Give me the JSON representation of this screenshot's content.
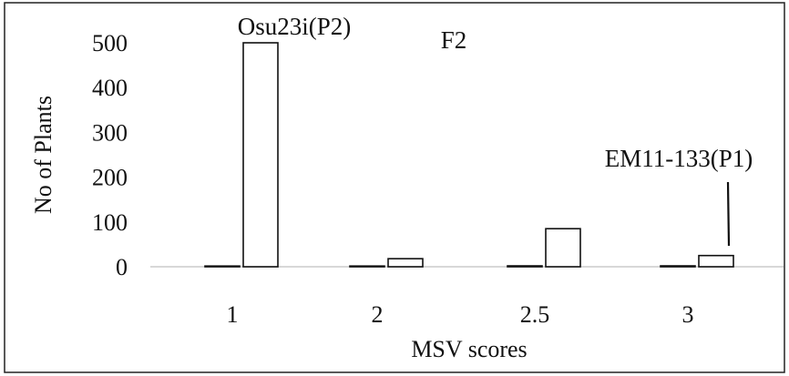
{
  "chart_data": {
    "type": "bar",
    "categories": [
      "1",
      "2",
      "2.5",
      "3"
    ],
    "series": [
      {
        "values": [
          0,
          0,
          2,
          2
        ]
      },
      {
        "values": [
          500,
          18,
          85,
          25
        ]
      }
    ],
    "xlabel": "MSV scores",
    "ylabel": "No of Plants",
    "ylim": [
      0,
      500
    ],
    "yticks": [
      0,
      100,
      200,
      300,
      400,
      500
    ],
    "grid": false,
    "annotations": [
      {
        "text": "Osu23i(P2)",
        "category": "1"
      },
      {
        "text": "F2",
        "category": "2"
      },
      {
        "text": "EM11-133(P1)",
        "category": "3",
        "arrow": true
      }
    ],
    "colors": {
      "bar_fill": "#ffffff",
      "bar_stroke": "#111111",
      "baseline": "#d8d8d8"
    }
  }
}
